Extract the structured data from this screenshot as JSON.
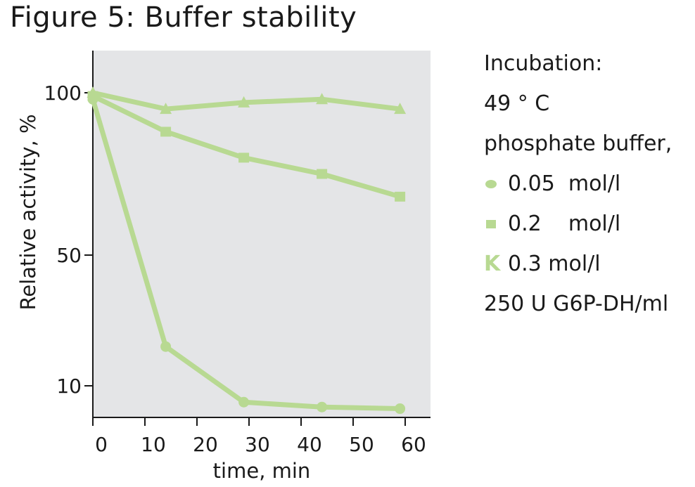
{
  "title": "Figure 5: Buffer stability",
  "colors": {
    "plot_background": "#e4e5e7",
    "series": "#b8d992",
    "axis": "#1a1a1a"
  },
  "legend": {
    "heading": "Incubation:",
    "temperature": "49 ° C",
    "buffer": "phosphate buffer,",
    "entries": [
      {
        "marker": "circle",
        "label": "0.05  mol/l"
      },
      {
        "marker": "square",
        "label": "0.2    mol/l"
      },
      {
        "marker": "triangle",
        "glyph": "K",
        "label": "0.3 mol/l"
      }
    ],
    "enzyme": "250 U G6P-DH/ml"
  },
  "chart_data": {
    "type": "line",
    "xlabel": "time, min",
    "ylabel": "Relative activity, %",
    "x_ticks": [
      0,
      10,
      20,
      30,
      40,
      50,
      60
    ],
    "y_ticks": [
      10,
      50,
      100
    ],
    "xlim": [
      0,
      65
    ],
    "grid": false,
    "legend_position": "right",
    "series": [
      {
        "name": "0.05  mol/l",
        "marker": "circle",
        "x": [
          0,
          14,
          29,
          44,
          59
        ],
        "y": [
          98,
          22,
          5,
          3.5,
          3
        ]
      },
      {
        "name": "0.2    mol/l",
        "marker": "square",
        "x": [
          0,
          14,
          29,
          44,
          59
        ],
        "y": [
          99,
          88,
          80,
          75,
          68
        ]
      },
      {
        "name": "0.3 mol/l",
        "marker": "triangle",
        "x": [
          0,
          14,
          29,
          44,
          59
        ],
        "y": [
          100,
          95,
          97,
          98,
          95
        ]
      }
    ]
  }
}
